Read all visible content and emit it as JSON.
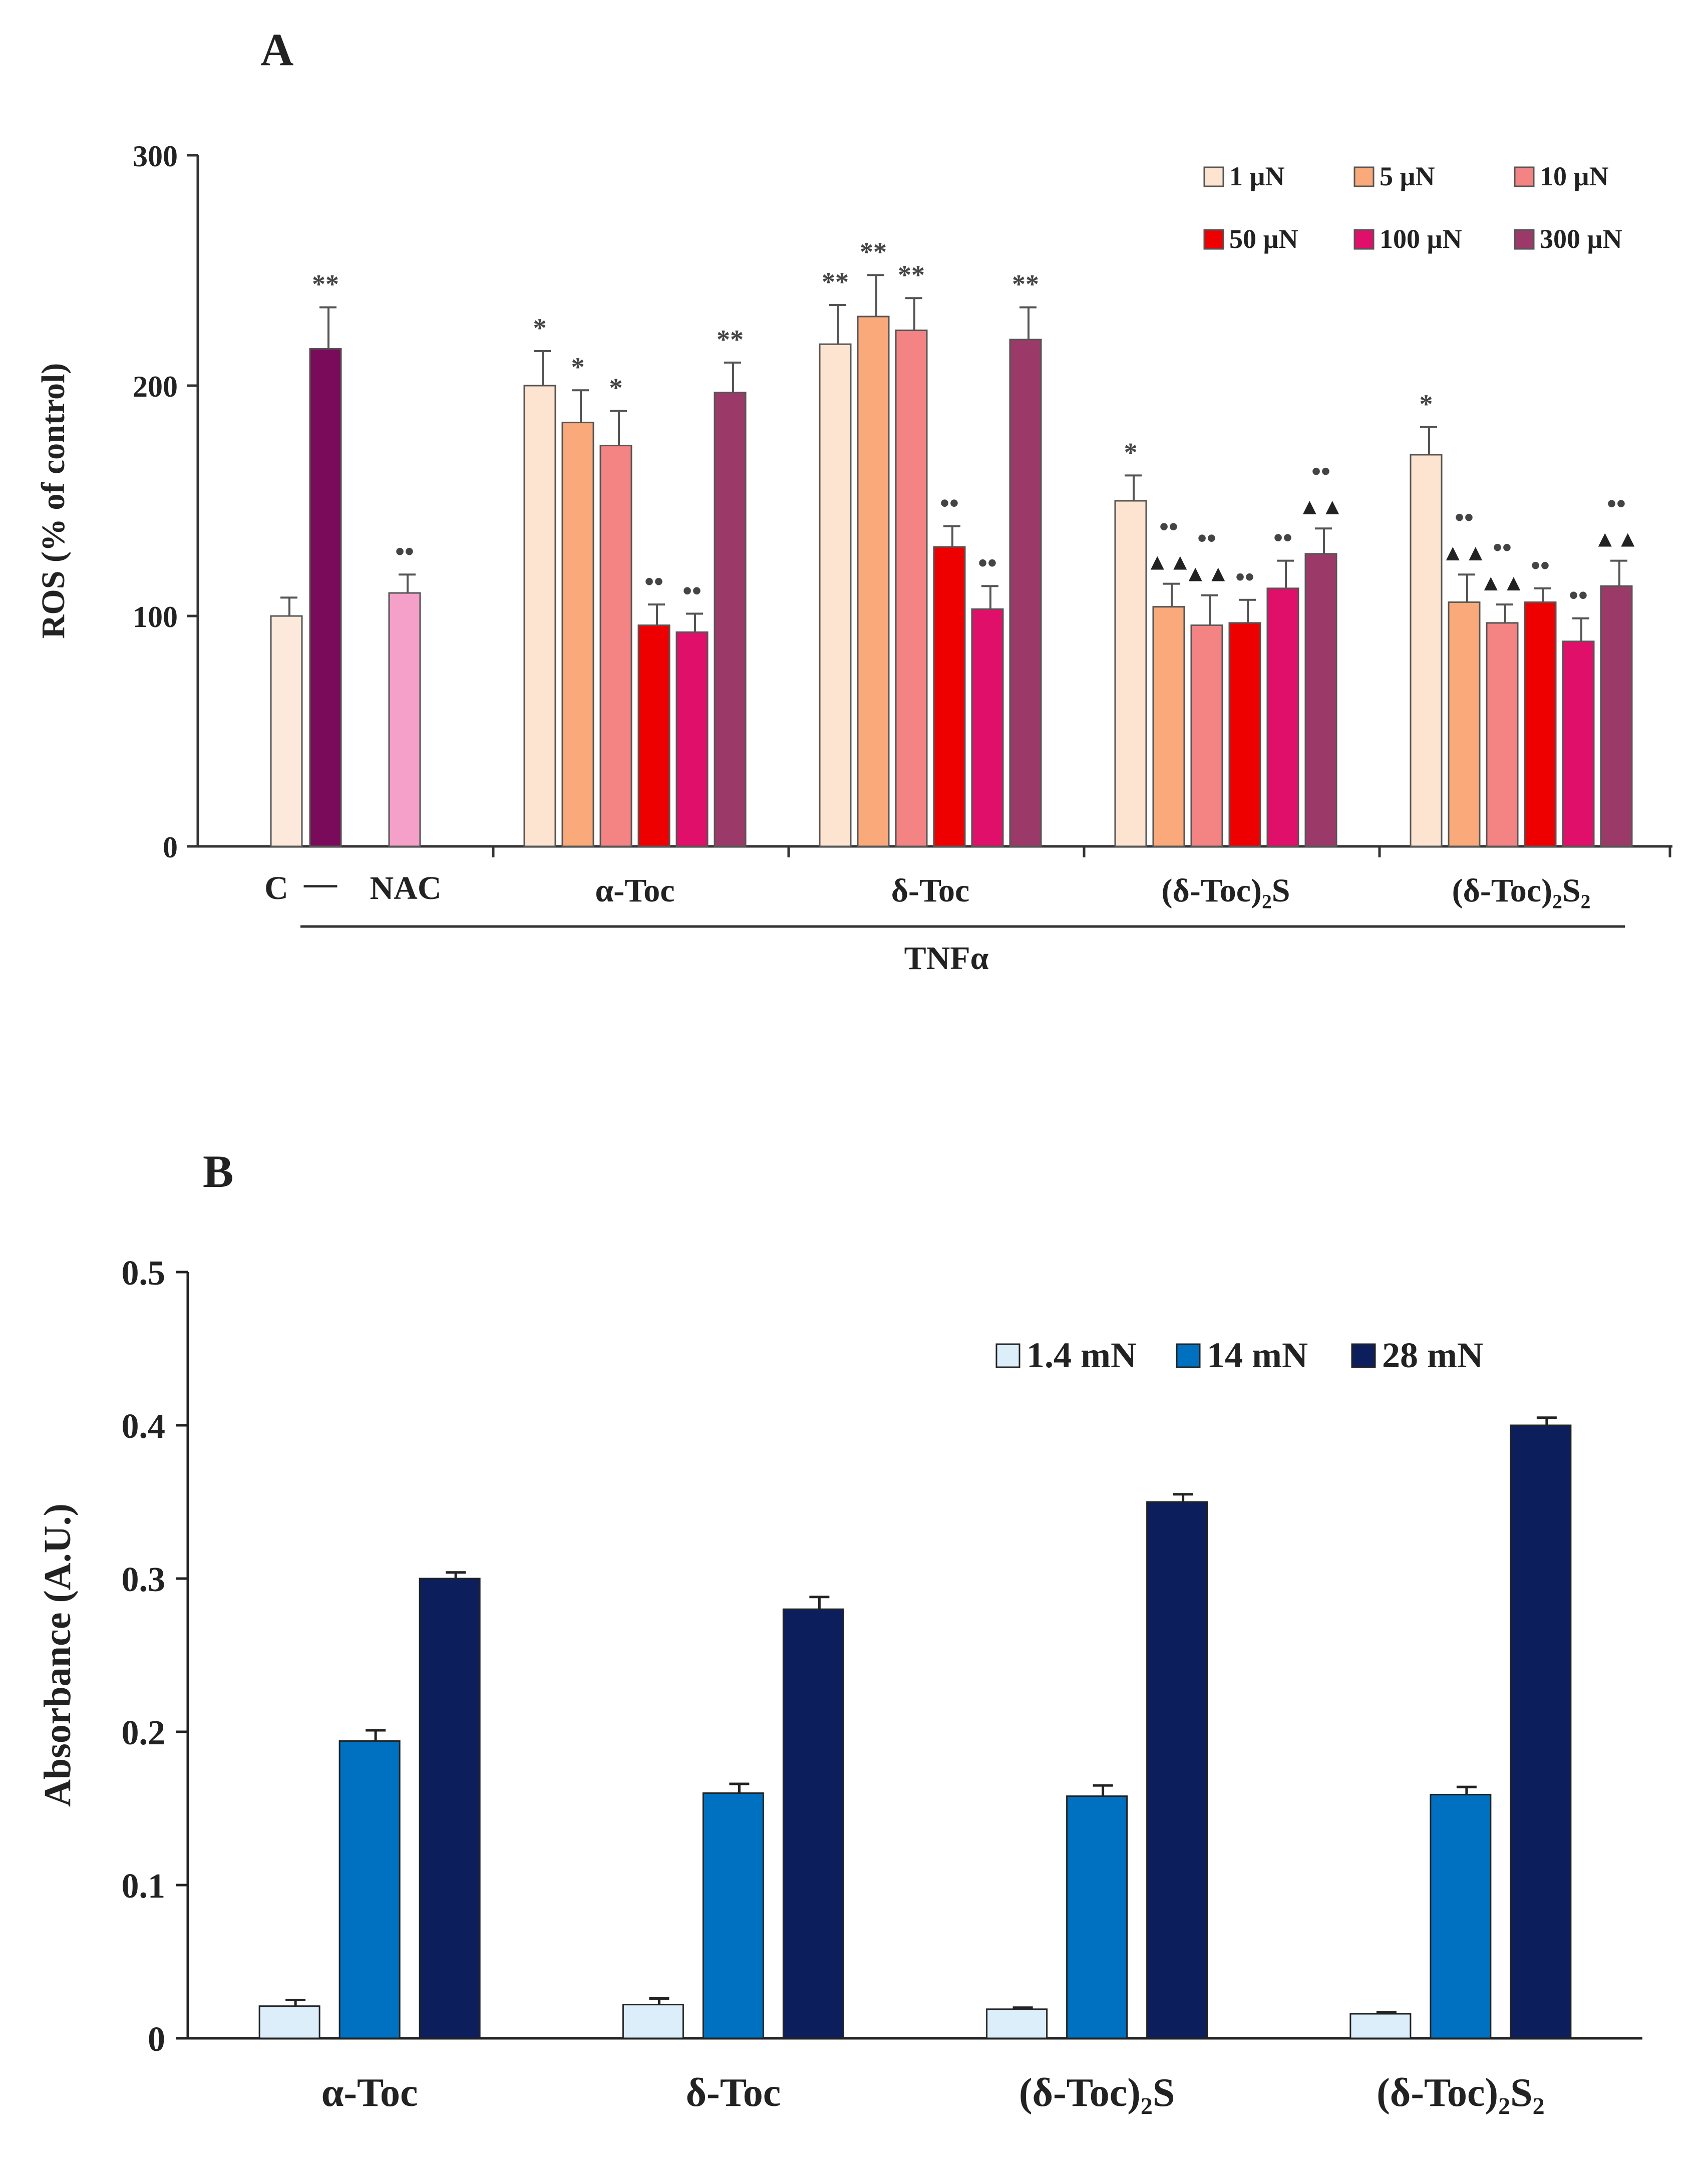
{
  "chart_data": [
    {
      "panel": "A",
      "type": "bar",
      "ylabel": "ROS (% of control)",
      "ylim": [
        0,
        300
      ],
      "yticks": [
        0,
        100,
        200,
        300
      ],
      "legend_position": "top-right",
      "series": [
        {
          "name": "1 µN",
          "color": "#fde4d0"
        },
        {
          "name": "5 µN",
          "color": "#f9a97a"
        },
        {
          "name": "10 µN",
          "color": "#f48484"
        },
        {
          "name": "50 µN",
          "color": "#ee0000"
        },
        {
          "name": "100 µN",
          "color": "#e0106a"
        },
        {
          "name": "300 µN",
          "color": "#9b3a68"
        }
      ],
      "controls": [
        {
          "id": "C",
          "label": "C",
          "value": 100,
          "err": 8,
          "color": "#fde9dc",
          "annotation": ""
        },
        {
          "id": "tnf",
          "label": "—",
          "value": 216,
          "err": 18,
          "color": "#7a0b5a",
          "annotation": "**"
        },
        {
          "id": "NAC",
          "label": "NAC",
          "value": 110,
          "err": 8,
          "color": "#f5a0c8",
          "annotation": "••"
        }
      ],
      "groups": [
        {
          "label": "α-Toc",
          "values": [
            200,
            184,
            174,
            96,
            93,
            197
          ],
          "err": [
            15,
            14,
            15,
            9,
            8,
            13
          ],
          "annotations": [
            "*",
            "*",
            "*",
            "••",
            "••",
            "**"
          ]
        },
        {
          "label": "δ-Toc",
          "values": [
            218,
            230,
            224,
            130,
            103,
            220
          ],
          "err": [
            17,
            18,
            14,
            9,
            10,
            14
          ],
          "annotations": [
            "**",
            "**",
            "**",
            "••",
            "••",
            "**"
          ]
        },
        {
          "label": "(δ-Toc)₂S",
          "values": [
            150,
            104,
            96,
            97,
            112,
            127
          ],
          "err": [
            11,
            10,
            13,
            10,
            12,
            11
          ],
          "annotations": [
            "*",
            "••|▲▲",
            "••|▲▲",
            "••",
            "••",
            "••|▲▲"
          ]
        },
        {
          "label": "(δ-Toc)₂S₂",
          "values": [
            170,
            106,
            97,
            106,
            89,
            113
          ],
          "err": [
            12,
            12,
            8,
            6,
            10,
            11
          ],
          "annotations": [
            "*",
            "••|▲▲",
            "••|▲▲",
            "••",
            "••",
            "••|▲▲"
          ]
        }
      ],
      "bracket_label": "TNFα"
    },
    {
      "panel": "B",
      "type": "bar",
      "ylabel": "Absorbance (A.U.)",
      "ylim": [
        0,
        0.5
      ],
      "yticks": [
        "0",
        "0.1",
        "0.2",
        "0.3",
        "0.4",
        "0.5"
      ],
      "legend_position": "top-right",
      "categories": [
        "α-Toc",
        "δ-Toc",
        "(δ-Toc)₂S",
        "(δ-Toc)₂S₂"
      ],
      "series": [
        {
          "name": "1.4 mN",
          "color": "#dbeefa",
          "values": [
            0.021,
            0.022,
            0.019,
            0.016
          ],
          "err": [
            0.004,
            0.004,
            0.001,
            0.001
          ]
        },
        {
          "name": "14 mN",
          "color": "#0070c0",
          "values": [
            0.194,
            0.16,
            0.158,
            0.159
          ],
          "err": [
            0.007,
            0.006,
            0.007,
            0.005
          ]
        },
        {
          "name": "28 mN",
          "color": "#0c1f5c",
          "values": [
            0.3,
            0.28,
            0.35,
            0.4
          ],
          "err": [
            0.004,
            0.008,
            0.005,
            0.005
          ]
        }
      ]
    }
  ]
}
